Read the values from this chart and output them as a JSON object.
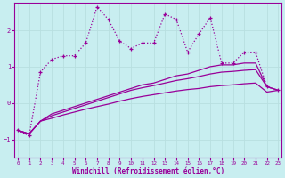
{
  "xlabel": "Windchill (Refroidissement éolien,°C)",
  "bg_color": "#c8eef0",
  "line_color": "#990099",
  "grid_color": "#b8dfe0",
  "x_ticks": [
    0,
    1,
    2,
    3,
    4,
    5,
    6,
    7,
    8,
    9,
    10,
    11,
    12,
    13,
    14,
    15,
    16,
    17,
    18,
    19,
    20,
    21,
    22,
    23
  ],
  "y_ticks": [
    -1,
    0,
    1,
    2
  ],
  "ylim": [
    -1.5,
    2.75
  ],
  "xlim": [
    -0.3,
    23.3
  ],
  "line1_x": [
    0,
    1,
    2,
    3,
    4,
    5,
    6,
    7,
    8,
    9,
    10,
    11,
    12,
    13,
    14,
    15,
    16,
    17,
    18,
    19,
    20,
    21,
    22,
    23
  ],
  "line1_y": [
    -0.75,
    -0.9,
    0.85,
    1.2,
    1.3,
    1.3,
    1.65,
    2.65,
    2.3,
    1.7,
    1.5,
    1.65,
    1.65,
    2.45,
    2.3,
    1.4,
    1.9,
    2.35,
    1.1,
    1.1,
    1.4,
    1.4,
    0.45,
    0.35
  ],
  "line2_x": [
    0,
    1,
    2,
    3,
    4,
    5,
    6,
    7,
    8,
    9,
    10,
    11,
    12,
    13,
    14,
    15,
    16,
    17,
    18,
    19,
    20,
    21,
    22,
    23
  ],
  "line2_y": [
    -0.75,
    -0.85,
    -0.5,
    -0.3,
    -0.2,
    -0.1,
    0.0,
    0.1,
    0.2,
    0.3,
    0.4,
    0.5,
    0.55,
    0.65,
    0.75,
    0.8,
    0.9,
    1.0,
    1.05,
    1.05,
    1.1,
    1.1,
    0.45,
    0.35
  ],
  "line3_x": [
    0,
    1,
    2,
    3,
    4,
    5,
    6,
    7,
    8,
    9,
    10,
    11,
    12,
    13,
    14,
    15,
    16,
    17,
    18,
    19,
    20,
    21,
    22,
    23
  ],
  "line3_y": [
    -0.75,
    -0.85,
    -0.5,
    -0.35,
    -0.25,
    -0.15,
    -0.05,
    0.05,
    0.15,
    0.25,
    0.35,
    0.42,
    0.48,
    0.55,
    0.62,
    0.67,
    0.73,
    0.8,
    0.85,
    0.87,
    0.9,
    0.92,
    0.45,
    0.35
  ],
  "line4_x": [
    0,
    1,
    2,
    3,
    4,
    5,
    6,
    7,
    8,
    9,
    10,
    11,
    12,
    13,
    14,
    15,
    16,
    17,
    18,
    19,
    20,
    21,
    22,
    23
  ],
  "line4_y": [
    -0.75,
    -0.85,
    -0.5,
    -0.42,
    -0.33,
    -0.25,
    -0.17,
    -0.1,
    -0.03,
    0.05,
    0.12,
    0.18,
    0.23,
    0.28,
    0.33,
    0.37,
    0.4,
    0.45,
    0.48,
    0.5,
    0.53,
    0.55,
    0.3,
    0.35
  ]
}
